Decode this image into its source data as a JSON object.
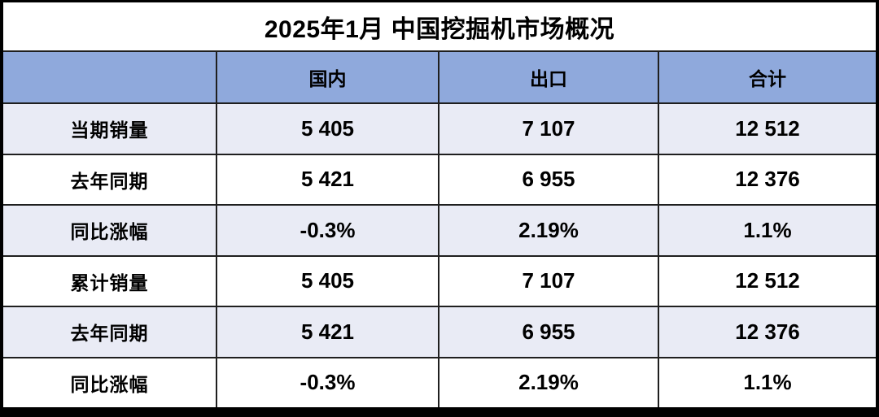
{
  "title": "2025年1月 中国挖掘机市场概况",
  "colors": {
    "header_bg": "#8FA9DC",
    "row_alt_bg": "#E9EBF5",
    "row_bg": "#FFFFFF",
    "grid_line": "#1F1F1F",
    "outer_border": "#000000",
    "text": "#000000"
  },
  "chart_data": {
    "type": "table",
    "title": "2025年1月 中国挖掘机市场概况",
    "columns": [
      "",
      "国内",
      "出口",
      "合计"
    ],
    "rows": [
      {
        "label": "当期销量",
        "values": [
          "5 405",
          "7 107",
          "12 512"
        ]
      },
      {
        "label": "去年同期",
        "values": [
          "5 421",
          "6 955",
          "12 376"
        ]
      },
      {
        "label": "同比涨幅",
        "values": [
          "-0.3%",
          "2.19%",
          "1.1%"
        ]
      },
      {
        "label": "累计销量",
        "values": [
          "5 405",
          "7 107",
          "12 512"
        ]
      },
      {
        "label": "去年同期",
        "values": [
          "5 421",
          "6 955",
          "12 376"
        ]
      },
      {
        "label": "同比涨幅",
        "values": [
          "-0.3%",
          "2.19%",
          "1.1%"
        ]
      }
    ]
  }
}
